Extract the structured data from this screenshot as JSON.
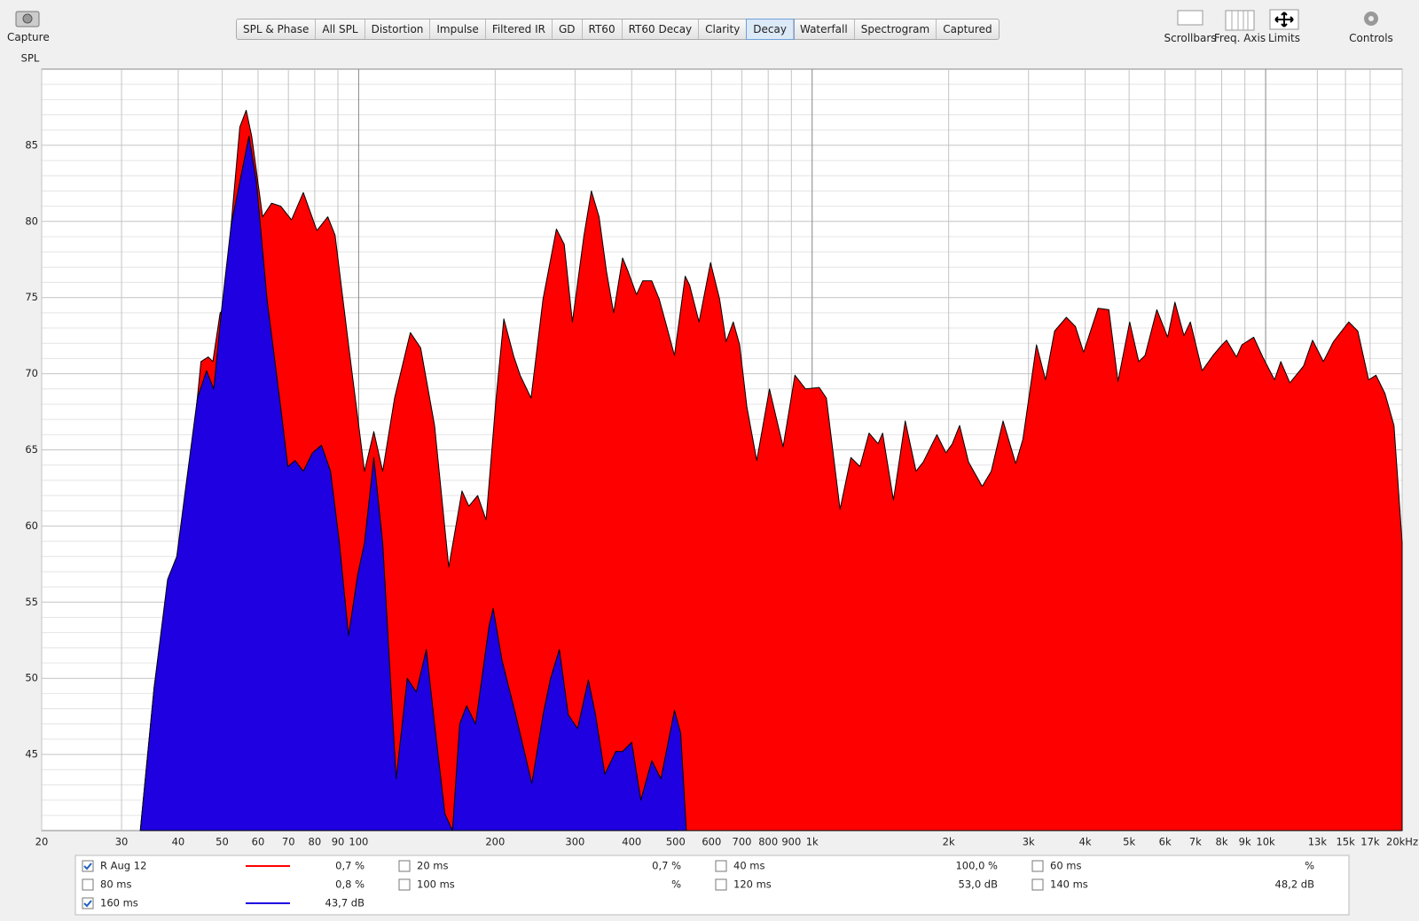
{
  "toolbar": {
    "capture": "Capture",
    "tabs": [
      "SPL & Phase",
      "All SPL",
      "Distortion",
      "Impulse",
      "Filtered IR",
      "GD",
      "RT60",
      "RT60 Decay",
      "Clarity",
      "Decay",
      "Waterfall",
      "Spectrogram",
      "Captured"
    ],
    "active_tab": "Decay",
    "tools": [
      "Scrollbars",
      "Freq. Axis",
      "Limits",
      "Controls"
    ]
  },
  "chart_data": {
    "type": "area",
    "ylabel": "SPL",
    "xscale": "log",
    "grid": true,
    "xlim": [
      20,
      20000
    ],
    "ylim": [
      40,
      90
    ],
    "xticks": [
      20,
      30,
      40,
      50,
      60,
      70,
      80,
      90,
      100,
      200,
      300,
      400,
      500,
      600,
      700,
      800,
      900,
      {
        "value": 1000,
        "label": "1k"
      },
      {
        "value": 2000,
        "label": "2k"
      },
      {
        "value": 3000,
        "label": "3k"
      },
      {
        "value": 4000,
        "label": "4k"
      },
      {
        "value": 5000,
        "label": "5k"
      },
      {
        "value": 6000,
        "label": "6k"
      },
      {
        "value": 7000,
        "label": "7k"
      },
      {
        "value": 8000,
        "label": "8k"
      },
      {
        "value": 9000,
        "label": "9k"
      },
      {
        "value": 10000,
        "label": "10k"
      },
      {
        "value": 13000,
        "label": "13k"
      },
      {
        "value": 15000,
        "label": "15k"
      },
      {
        "value": 17000,
        "label": "17k"
      },
      {
        "value": 20000,
        "label": "20kHz"
      }
    ],
    "yticks": [
      45,
      50,
      55,
      60,
      65,
      70,
      75,
      80,
      85
    ],
    "yticks_minor": [
      41,
      42,
      43,
      44,
      46,
      47,
      48,
      49,
      51,
      52,
      53,
      54,
      56,
      57,
      58,
      59,
      61,
      62,
      63,
      64,
      66,
      67,
      68,
      69,
      71,
      72,
      73,
      74,
      76,
      77,
      78,
      79,
      81,
      82,
      83,
      84,
      86,
      87,
      88,
      89
    ],
    "series": [
      {
        "name": "R Aug 12",
        "color": "#ff0000",
        "checked": true,
        "readout": "0,7 %",
        "x": [
          33.0,
          35.4,
          37.9,
          40.6,
          42.1,
          44.9,
          46.6,
          47.7,
          49.5,
          50.4,
          52.3,
          54.7,
          56.5,
          58.1,
          61.4,
          64.3,
          67.3,
          71.1,
          75.5,
          80.9,
          85.5,
          88.7,
          95.0,
          103,
          108,
          113,
          120,
          130,
          137,
          147,
          158,
          169,
          175,
          183,
          191,
          201,
          209,
          220,
          227,
          240,
          255,
          273,
          284,
          296,
          314,
          326,
          339,
          352,
          365,
          382,
          393,
          410,
          423,
          443,
          460,
          475,
          497,
          525,
          537,
          563,
          597,
          625,
          646,
          670,
          692,
          718,
          755,
          805,
          863,
          916,
          967,
          1037,
          1075,
          1152,
          1217,
          1275,
          1335,
          1398,
          1430,
          1511,
          1604,
          1695,
          1758,
          1884,
          1973,
          2038,
          2114,
          2213,
          2371,
          2483,
          2636,
          2811,
          2916,
          3124,
          3271,
          3424,
          3636,
          3807,
          3968,
          4270,
          4512,
          4725,
          5015,
          5251,
          5421,
          5756,
          6082,
          6310,
          6607,
          6824,
          7244,
          7654,
          8014,
          8201,
          8625,
          8866,
          9412,
          9854,
          10460,
          10800,
          11310,
          12120,
          12690,
          13410,
          14110,
          15250,
          15970,
          16870,
          17510,
          18330,
          19190,
          20000
        ],
        "values": [
          40.0,
          49.4,
          55.9,
          58.6,
          62.4,
          70.8,
          71.1,
          70.8,
          74.0,
          74.2,
          79.7,
          86.2,
          87.3,
          85.6,
          80.3,
          81.2,
          81.0,
          80.1,
          81.9,
          79.4,
          80.3,
          79.1,
          71.9,
          63.6,
          66.2,
          63.6,
          68.4,
          72.7,
          71.7,
          66.6,
          57.3,
          62.3,
          61.3,
          62.0,
          60.4,
          68.4,
          73.6,
          71.1,
          69.9,
          68.4,
          74.9,
          79.5,
          78.5,
          73.4,
          79.1,
          82.0,
          80.3,
          76.7,
          74.0,
          77.6,
          76.7,
          75.2,
          76.1,
          76.1,
          74.9,
          73.4,
          71.2,
          76.4,
          75.8,
          73.4,
          77.3,
          74.9,
          72.1,
          73.4,
          71.9,
          67.8,
          64.3,
          69.0,
          65.2,
          69.9,
          69.0,
          69.1,
          68.4,
          61.1,
          64.5,
          63.9,
          66.1,
          65.4,
          66.1,
          61.7,
          66.9,
          63.6,
          64.2,
          66.0,
          64.8,
          65.4,
          66.6,
          64.2,
          62.6,
          63.6,
          66.9,
          64.1,
          65.7,
          71.9,
          69.6,
          72.8,
          73.7,
          73.1,
          71.4,
          74.3,
          74.2,
          69.5,
          73.4,
          70.8,
          71.2,
          74.2,
          72.4,
          74.7,
          72.5,
          73.4,
          70.2,
          71.2,
          71.9,
          72.2,
          71.1,
          71.9,
          72.4,
          71.1,
          69.6,
          70.8,
          69.4,
          70.5,
          72.2,
          70.8,
          72.1,
          73.4,
          72.8,
          69.6,
          69.9,
          68.7,
          66.6,
          58.9
        ]
      },
      {
        "name": "160 ms",
        "color": "#1e00e0",
        "checked": true,
        "readout": "43,7 dB",
        "x": [
          33.0,
          35.4,
          37.9,
          39.7,
          41.5,
          44.1,
          46.2,
          47.9,
          49.9,
          52.3,
          54.7,
          57.3,
          59.5,
          62.8,
          67.3,
          69.8,
          72.4,
          75.5,
          79.1,
          82.8,
          86.7,
          90.7,
          95.0,
          99.5,
          103,
          108,
          113,
          121,
          128,
          134,
          141,
          147,
          155,
          161,
          167,
          173,
          181,
          194,
          198,
          207,
          222,
          241,
          255,
          265,
          277,
          290,
          304,
          321,
          333,
          349,
          369,
          382,
          400,
          419,
          443,
          464,
          497,
          513,
          528
        ],
        "values": [
          40.0,
          49.4,
          56.5,
          58.0,
          62.4,
          68.4,
          70.2,
          69.0,
          74.3,
          79.7,
          82.6,
          85.6,
          82.6,
          74.9,
          67.8,
          63.9,
          64.3,
          63.6,
          64.8,
          65.3,
          63.6,
          58.9,
          52.8,
          56.8,
          58.9,
          64.5,
          58.9,
          43.4,
          50.0,
          49.1,
          51.9,
          47.0,
          41.1,
          40.0,
          47.0,
          48.2,
          47.0,
          53.5,
          54.6,
          51.2,
          47.6,
          43.1,
          47.6,
          50.0,
          51.9,
          47.6,
          46.7,
          49.9,
          47.6,
          43.7,
          45.2,
          45.2,
          45.8,
          42.0,
          44.6,
          43.4,
          47.9,
          46.4,
          40.0
        ]
      }
    ],
    "legend": [
      {
        "name": "20 ms",
        "checked": false,
        "readout": "0,7 %",
        "color": "#e0103a"
      },
      {
        "name": "40 ms",
        "checked": false,
        "readout": "100,0 %",
        "color": "#d01040"
      },
      {
        "name": "60 ms",
        "checked": false,
        "readout": "%",
        "color": "#c8104a"
      },
      {
        "name": "80 ms",
        "checked": false,
        "readout": "0,8 %",
        "color": "#a0107a"
      },
      {
        "name": "100 ms",
        "checked": false,
        "readout": "%",
        "color": "#8010a0"
      },
      {
        "name": "120 ms",
        "checked": false,
        "readout": "53,0 dB",
        "color": "#6010b8"
      },
      {
        "name": "140 ms",
        "checked": false,
        "readout": "48,2 dB",
        "color": "#4010c8"
      }
    ]
  }
}
